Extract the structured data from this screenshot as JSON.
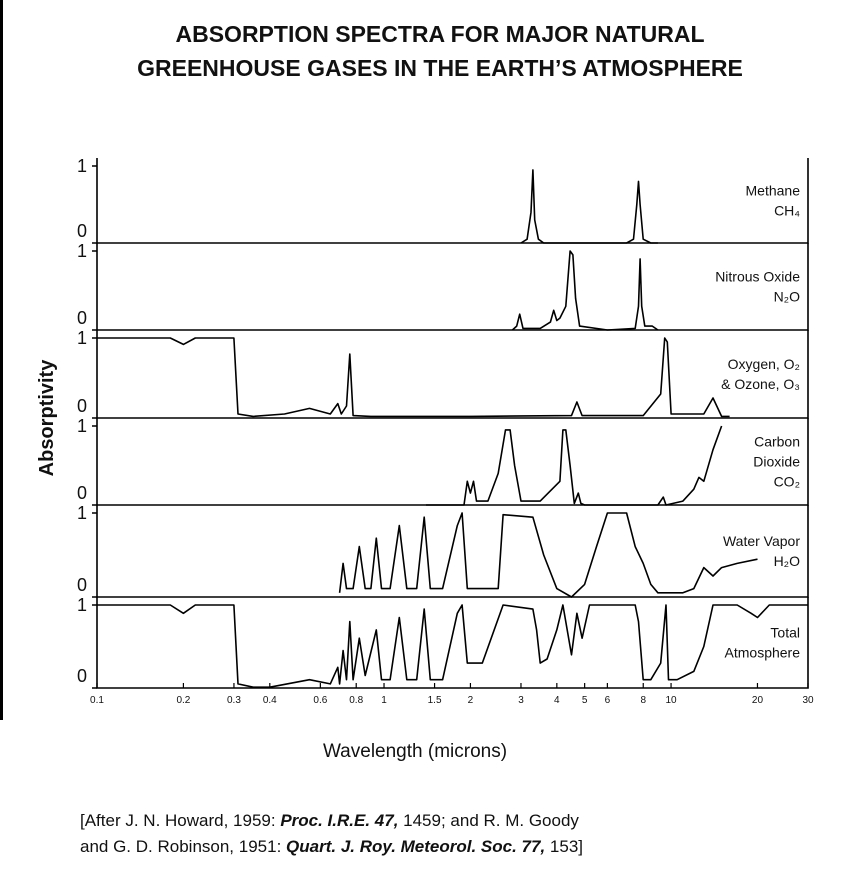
{
  "title": [
    "ABSORPTION SPECTRA FOR MAJOR NATURAL",
    "GREENHOUSE GASES IN THE EARTH’S ATMOSPHERE"
  ],
  "y_label": "Absorptivity",
  "x_label": "Wavelength (microns)",
  "caption": [
    [
      "[After J. N. Howard, 1959: ",
      "Proc. I.R.E. 47,",
      " 1459; and R. M. Goody"
    ],
    [
      "and G. D. Robinson, 1951: ",
      "Quart. J. Roy. Meteorol. Soc. 77,",
      " 153]"
    ]
  ],
  "chart_data": [
    {
      "type": "line",
      "label": [
        "Methane",
        "CH₄"
      ],
      "color": "#000000",
      "xscale": "log",
      "xlim": [
        0.1,
        30
      ],
      "ylim": [
        0,
        1
      ],
      "yticks": [
        0,
        1
      ],
      "x": [
        3.0,
        3.15,
        3.25,
        3.3,
        3.35,
        3.45,
        3.6,
        5,
        7,
        7.4,
        7.6,
        7.7,
        7.8,
        8.0,
        8.5,
        9.0
      ],
      "values": [
        0,
        0.05,
        0.4,
        0.95,
        0.3,
        0.05,
        0,
        0,
        0,
        0.05,
        0.5,
        0.8,
        0.5,
        0.05,
        0,
        0
      ]
    },
    {
      "type": "line",
      "label": [
        "Nitrous Oxide",
        "N₂O"
      ],
      "color": "#000000",
      "xscale": "log",
      "xlim": [
        0.1,
        30
      ],
      "ylim": [
        0,
        1
      ],
      "yticks": [
        0,
        1
      ],
      "x": [
        2.8,
        2.9,
        2.97,
        3.05,
        3.5,
        3.8,
        3.9,
        4.0,
        4.1,
        4.3,
        4.45,
        4.55,
        4.65,
        4.8,
        6,
        7.5,
        7.7,
        7.8,
        7.9,
        8.1,
        8.6,
        9.0
      ],
      "values": [
        0,
        0.05,
        0.2,
        0.02,
        0.02,
        0.1,
        0.25,
        0.12,
        0.15,
        0.3,
        1.0,
        0.95,
        0.4,
        0.05,
        0,
        0.02,
        0.3,
        0.9,
        0.3,
        0.05,
        0.05,
        0
      ]
    },
    {
      "type": "line",
      "label": [
        "Oxygen, O₂",
        "& Ozone, O₃"
      ],
      "color": "#000000",
      "xscale": "log",
      "xlim": [
        0.1,
        30
      ],
      "ylim": [
        0,
        1
      ],
      "yticks": [
        0,
        1
      ],
      "x": [
        0.1,
        0.18,
        0.2,
        0.22,
        0.3,
        0.31,
        0.35,
        0.45,
        0.55,
        0.65,
        0.69,
        0.71,
        0.74,
        0.76,
        0.78,
        0.9,
        2,
        4.5,
        4.7,
        4.9,
        8,
        9.2,
        9.5,
        9.7,
        10,
        13,
        14,
        15,
        16
      ],
      "values": [
        1,
        1,
        0.92,
        1,
        1,
        0.05,
        0.02,
        0.05,
        0.12,
        0.05,
        0.18,
        0.05,
        0.15,
        0.8,
        0.03,
        0.02,
        0.02,
        0.03,
        0.2,
        0.03,
        0.03,
        0.3,
        1,
        0.95,
        0.05,
        0.05,
        0.25,
        0.02,
        0.02
      ]
    },
    {
      "type": "line",
      "label": [
        "Carbon",
        "Dioxide",
        "CO₂"
      ],
      "color": "#000000",
      "xscale": "log",
      "xlim": [
        0.1,
        30
      ],
      "ylim": [
        0,
        1
      ],
      "yticks": [
        0,
        1
      ],
      "x": [
        1.4,
        1.9,
        1.95,
        2.0,
        2.05,
        2.1,
        2.3,
        2.5,
        2.65,
        2.75,
        2.85,
        3.0,
        3.5,
        4.1,
        4.2,
        4.3,
        4.45,
        4.6,
        4.75,
        4.85,
        5,
        9,
        9.4,
        9.6,
        11,
        12,
        12.5,
        13,
        14,
        15
      ],
      "values": [
        0,
        0,
        0.3,
        0.15,
        0.3,
        0.05,
        0.05,
        0.4,
        0.95,
        0.95,
        0.5,
        0.05,
        0.05,
        0.3,
        0.95,
        0.95,
        0.5,
        0.02,
        0.15,
        0.02,
        0,
        0,
        0.1,
        0,
        0.05,
        0.2,
        0.35,
        0.3,
        0.7,
        1
      ]
    },
    {
      "type": "line",
      "label": [
        "Water Vapor",
        "H₂O"
      ],
      "color": "#000000",
      "xscale": "log",
      "xlim": [
        0.1,
        30
      ],
      "ylim": [
        0,
        1
      ],
      "yticks": [
        0,
        1
      ],
      "x": [
        0.7,
        0.72,
        0.74,
        0.78,
        0.82,
        0.86,
        0.9,
        0.94,
        0.98,
        1.05,
        1.13,
        1.2,
        1.3,
        1.38,
        1.45,
        1.6,
        1.8,
        1.87,
        1.95,
        2.2,
        2.5,
        2.6,
        3.3,
        3.6,
        4.0,
        4.5,
        5.0,
        5.5,
        6.0,
        7.0,
        7.5,
        8.0,
        8.5,
        9,
        10,
        11,
        12,
        13,
        14,
        15,
        17,
        20
      ],
      "values": [
        0.05,
        0.4,
        0.1,
        0.1,
        0.6,
        0.1,
        0.1,
        0.7,
        0.1,
        0.1,
        0.85,
        0.1,
        0.1,
        0.95,
        0.1,
        0.1,
        0.85,
        1,
        0.1,
        0.1,
        0.1,
        0.98,
        0.95,
        0.5,
        0.1,
        0,
        0.15,
        0.6,
        1,
        1,
        0.6,
        0.4,
        0.15,
        0.05,
        0.05,
        0.05,
        0.1,
        0.35,
        0.25,
        0.35,
        0.4,
        0.45
      ]
    },
    {
      "type": "line",
      "label": [
        "Total",
        "Atmosphere"
      ],
      "color": "#000000",
      "xscale": "log",
      "xlim": [
        0.1,
        30
      ],
      "ylim": [
        0,
        1
      ],
      "yticks": [
        0,
        1
      ],
      "xticks": [
        0.1,
        0.2,
        0.3,
        0.4,
        0.6,
        0.8,
        1,
        1.5,
        2,
        3,
        4,
        5,
        6,
        8,
        10,
        20,
        30
      ],
      "x": [
        0.1,
        0.18,
        0.2,
        0.22,
        0.3,
        0.31,
        0.35,
        0.4,
        0.55,
        0.65,
        0.69,
        0.7,
        0.72,
        0.74,
        0.76,
        0.78,
        0.82,
        0.86,
        0.94,
        0.98,
        1.05,
        1.13,
        1.2,
        1.3,
        1.38,
        1.45,
        1.6,
        1.8,
        1.87,
        1.95,
        2.2,
        2.6,
        3.3,
        3.4,
        3.5,
        3.7,
        4.0,
        4.2,
        4.5,
        4.7,
        4.9,
        5.2,
        7.5,
        7.7,
        8.0,
        8.5,
        9.2,
        9.6,
        9.8,
        10.5,
        12,
        13,
        14,
        17,
        19,
        20,
        22,
        30
      ],
      "values": [
        1,
        1,
        0.9,
        1,
        1,
        0.05,
        0.01,
        0.01,
        0.1,
        0.05,
        0.25,
        0.05,
        0.45,
        0.1,
        0.8,
        0.1,
        0.6,
        0.15,
        0.7,
        0.1,
        0.1,
        0.85,
        0.1,
        0.1,
        0.95,
        0.1,
        0.1,
        0.9,
        1,
        0.3,
        0.3,
        1,
        0.95,
        0.7,
        0.3,
        0.35,
        0.7,
        1,
        0.4,
        0.9,
        0.6,
        1,
        1,
        0.8,
        0.1,
        0.1,
        0.3,
        1,
        0.1,
        0.1,
        0.2,
        0.5,
        1,
        1,
        0.9,
        0.85,
        1,
        1
      ]
    }
  ]
}
